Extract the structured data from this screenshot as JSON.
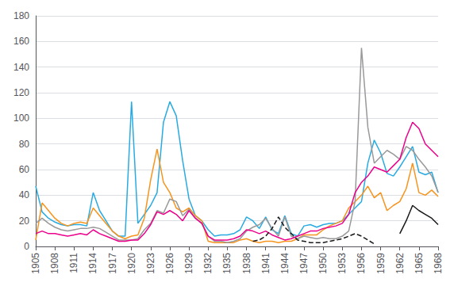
{
  "chart_data": {
    "type": "line",
    "x": [
      1905,
      1906,
      1907,
      1908,
      1909,
      1910,
      1911,
      1912,
      1913,
      1914,
      1915,
      1916,
      1917,
      1918,
      1919,
      1920,
      1921,
      1922,
      1923,
      1924,
      1925,
      1926,
      1927,
      1928,
      1929,
      1930,
      1931,
      1932,
      1933,
      1934,
      1935,
      1936,
      1937,
      1938,
      1939,
      1940,
      1941,
      1942,
      1943,
      1944,
      1945,
      1946,
      1947,
      1948,
      1949,
      1950,
      1951,
      1952,
      1953,
      1954,
      1955,
      1956,
      1957,
      1958,
      1959,
      1960,
      1961,
      1962,
      1963,
      1964,
      1965,
      1966,
      1967,
      1968
    ],
    "series": [
      {
        "color": "#29ABE2",
        "line_style": "solid",
        "values": [
          47,
          27,
          22,
          19,
          17,
          16,
          17,
          17,
          16,
          42,
          28,
          20,
          12,
          8,
          8,
          113,
          18,
          25,
          32,
          42,
          97,
          113,
          102,
          67,
          37,
          24,
          20,
          13,
          8,
          9,
          9,
          10,
          13,
          23,
          20,
          14,
          23,
          13,
          10,
          24,
          10,
          8,
          16,
          17,
          15,
          17,
          18,
          18,
          20,
          25,
          30,
          35,
          65,
          83,
          73,
          57,
          55,
          62,
          70,
          78,
          58,
          56,
          58,
          42
        ]
      },
      {
        "color": "#F7941D",
        "line_style": "solid",
        "values": [
          5,
          34,
          28,
          22,
          18,
          16,
          18,
          19,
          18,
          30,
          24,
          18,
          12,
          8,
          6,
          8,
          9,
          22,
          52,
          76,
          50,
          42,
          30,
          27,
          30,
          24,
          20,
          4,
          3,
          3,
          3,
          3,
          5,
          6,
          4,
          3,
          4,
          4,
          3,
          4,
          4,
          6,
          9,
          9,
          9,
          13,
          16,
          18,
          20,
          30,
          35,
          40,
          47,
          38,
          42,
          28,
          32,
          35,
          45,
          65,
          42,
          40,
          44,
          39
        ]
      },
      {
        "color": "#999999",
        "line_style": "solid",
        "values": [
          18,
          22,
          18,
          15,
          13,
          12,
          13,
          14,
          14,
          15,
          14,
          11,
          8,
          5,
          5,
          5,
          6,
          13,
          18,
          28,
          26,
          37,
          35,
          24,
          29,
          22,
          18,
          8,
          4,
          4,
          3,
          4,
          6,
          12,
          15,
          17,
          22,
          14,
          8,
          23,
          8,
          6,
          8,
          7,
          6,
          7,
          6,
          6,
          8,
          12,
          35,
          155,
          93,
          65,
          70,
          75,
          72,
          68,
          78,
          75,
          68,
          62,
          55,
          42
        ]
      },
      {
        "color": "#EC008C",
        "line_style": "solid",
        "values": [
          10,
          12,
          10,
          10,
          9,
          8,
          9,
          10,
          9,
          13,
          10,
          8,
          6,
          4,
          4,
          5,
          5,
          10,
          17,
          27,
          25,
          28,
          25,
          20,
          28,
          22,
          18,
          8,
          5,
          5,
          5,
          6,
          8,
          13,
          12,
          10,
          12,
          9,
          7,
          5,
          6,
          8,
          10,
          12,
          12,
          14,
          15,
          16,
          18,
          25,
          42,
          50,
          55,
          62,
          60,
          58,
          63,
          68,
          85,
          97,
          92,
          80,
          75,
          70
        ]
      },
      {
        "color": "#1a1a1a",
        "line_style": "dashed",
        "values": [
          null,
          null,
          null,
          null,
          null,
          null,
          null,
          null,
          null,
          null,
          null,
          null,
          null,
          null,
          null,
          null,
          null,
          null,
          null,
          null,
          null,
          null,
          null,
          null,
          null,
          null,
          null,
          null,
          null,
          null,
          null,
          null,
          null,
          null,
          4,
          5,
          8,
          14,
          23,
          15,
          10,
          5,
          4,
          3,
          3,
          3,
          4,
          5,
          6,
          8,
          10,
          8,
          5,
          2,
          null,
          null,
          null,
          null,
          null,
          null,
          null,
          null,
          null,
          null
        ]
      },
      {
        "color": "#1a1a1a",
        "line_style": "solid",
        "values": [
          null,
          null,
          null,
          null,
          null,
          null,
          null,
          null,
          null,
          null,
          null,
          null,
          null,
          null,
          null,
          null,
          null,
          null,
          null,
          null,
          null,
          null,
          null,
          null,
          null,
          null,
          null,
          null,
          null,
          null,
          null,
          null,
          null,
          null,
          null,
          null,
          null,
          null,
          null,
          null,
          null,
          null,
          null,
          null,
          null,
          null,
          null,
          null,
          null,
          null,
          null,
          null,
          null,
          null,
          null,
          null,
          null,
          10,
          20,
          32,
          28,
          25,
          22,
          17
        ]
      }
    ],
    "xlim": [
      1905,
      1968
    ],
    "ylim": [
      0,
      180
    ],
    "xticks": [
      1905,
      1908,
      1911,
      1914,
      1917,
      1920,
      1923,
      1926,
      1929,
      1932,
      1935,
      1938,
      1941,
      1944,
      1947,
      1950,
      1953,
      1956,
      1959,
      1962,
      1965,
      1968
    ],
    "yticks": [
      0,
      20,
      40,
      60,
      80,
      100,
      120,
      140,
      160,
      180
    ],
    "grid": true
  }
}
